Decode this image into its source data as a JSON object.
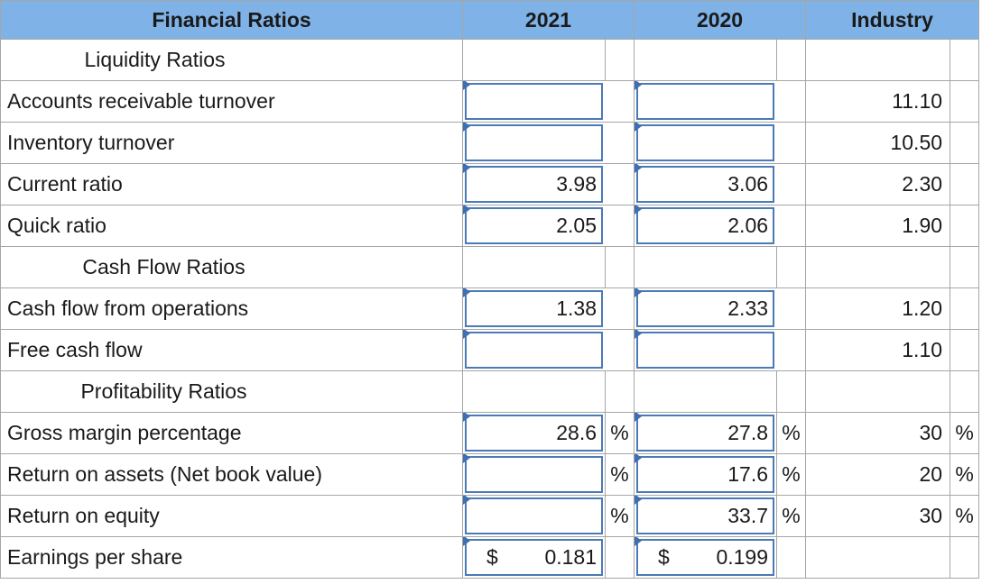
{
  "header": {
    "col_label": "Financial Ratios",
    "col_2021": "2021",
    "col_2020": "2020",
    "col_industry": "Industry"
  },
  "sections": {
    "liquidity": "Liquidity Ratios",
    "cash_flow": "Cash Flow Ratios",
    "profitability": "Profitability Ratios"
  },
  "rows": {
    "ar_turnover": {
      "label": "Accounts receivable turnover",
      "v2021": "",
      "v2020": "",
      "industry": "11.10"
    },
    "inv_turnover": {
      "label": "Inventory turnover",
      "v2021": "",
      "v2020": "",
      "industry": "10.50"
    },
    "current_ratio": {
      "label": "Current ratio",
      "v2021": "3.98",
      "v2020": "3.06",
      "industry": "2.30"
    },
    "quick_ratio": {
      "label": "Quick ratio",
      "v2021": "2.05",
      "v2020": "2.06",
      "industry": "1.90"
    },
    "cfo": {
      "label": "Cash flow from operations",
      "v2021": "1.38",
      "v2020": "2.33",
      "industry": "1.20"
    },
    "fcf": {
      "label": "Free cash flow",
      "v2021": "",
      "v2020": "",
      "industry": "1.10"
    },
    "gross_margin": {
      "label": "Gross margin percentage",
      "v2021": "28.6",
      "v2020": "27.8",
      "industry": "30"
    },
    "roa": {
      "label": "Return on assets (Net book value)",
      "v2021": "",
      "v2020": "17.6",
      "industry": "20"
    },
    "roe": {
      "label": "Return on equity",
      "v2021": "",
      "v2020": "33.7",
      "industry": "30"
    },
    "eps": {
      "label": "Earnings per share",
      "v2021": "0.181",
      "v2020": "0.199",
      "industry": ""
    }
  },
  "symbols": {
    "percent": "%",
    "dollar": "$"
  },
  "colors": {
    "header_bg": "#7fb2e6",
    "input_border": "#4a7ab7",
    "grid": "#a6a6a6"
  }
}
